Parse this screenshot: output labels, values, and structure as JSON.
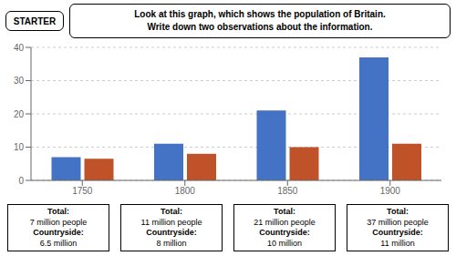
{
  "chart_data": {
    "type": "bar",
    "title": "Look at this graph, which shows the population of Britain.",
    "subtitle": "Write down two observations about the information.",
    "categories": [
      "1750",
      "1800",
      "1850",
      "1900"
    ],
    "series": [
      {
        "color": "#4472C4",
        "values": [
          7,
          11,
          21,
          37
        ]
      },
      {
        "color": "#C0522A",
        "values": [
          6.5,
          8,
          10,
          11
        ]
      }
    ],
    "ylim": [
      0,
      40
    ],
    "yticks": [
      0,
      10,
      20,
      30,
      40
    ],
    "grid": true,
    "annotations": [
      [
        "STARTER"
      ],
      [
        "Total:",
        "7 million people",
        "Countryside:",
        "6.5 million"
      ],
      [
        "Total:",
        "11 million people",
        "Countryside:",
        "8 million"
      ],
      [
        "Total:",
        "21 million people",
        "Countryside:",
        "10 million"
      ],
      [
        "Total:",
        "37 million people",
        "Countryside:",
        "11 million"
      ]
    ]
  }
}
